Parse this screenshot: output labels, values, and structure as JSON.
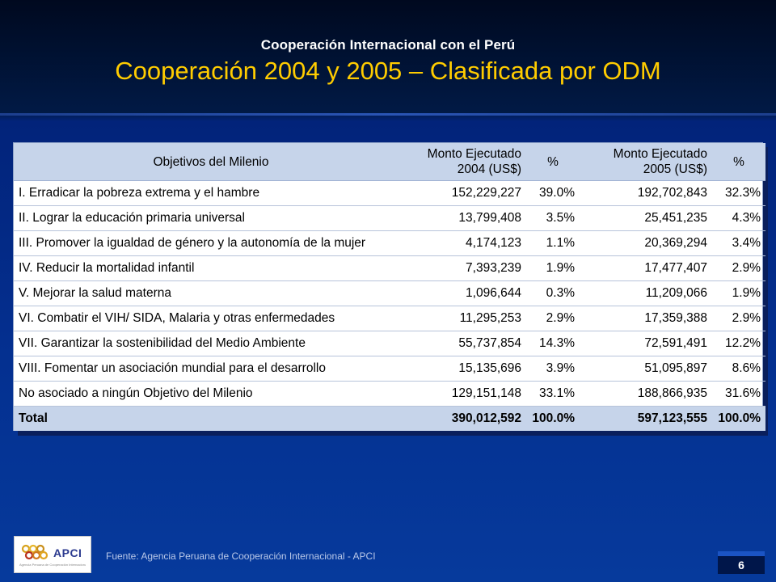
{
  "header": {
    "subtitle": "Cooperación Internacional con el Perú",
    "title": "Cooperación 2004 y 2005 – Clasificada por ODM"
  },
  "table": {
    "headers": {
      "objective": "Objetivos del Milenio",
      "amount_2004_line1": "Monto Ejecutado",
      "amount_2004_line2": "2004 (US$)",
      "pct_2004": "%",
      "amount_2005_line1": "Monto Ejecutado",
      "amount_2005_line2": "2005 (US$)",
      "pct_2005": "%"
    },
    "rows": [
      {
        "objective": "I. Erradicar la pobreza extrema y el hambre",
        "amount_2004": "152,229,227",
        "pct_2004": "39.0%",
        "amount_2005": "192,702,843",
        "pct_2005": "32.3%"
      },
      {
        "objective": "II. Lograr la educación primaria universal",
        "amount_2004": "13,799,408",
        "pct_2004": "3.5%",
        "amount_2005": "25,451,235",
        "pct_2005": "4.3%"
      },
      {
        "objective": "III. Promover la igualdad de género y la autonomía de la mujer",
        "amount_2004": "4,174,123",
        "pct_2004": "1.1%",
        "amount_2005": "20,369,294",
        "pct_2005": "3.4%"
      },
      {
        "objective": "IV. Reducir la mortalidad infantil",
        "amount_2004": "7,393,239",
        "pct_2004": "1.9%",
        "amount_2005": "17,477,407",
        "pct_2005": "2.9%"
      },
      {
        "objective": "V. Mejorar la salud materna",
        "amount_2004": "1,096,644",
        "pct_2004": "0.3%",
        "amount_2005": "11,209,066",
        "pct_2005": "1.9%"
      },
      {
        "objective": "VI. Combatir el VIH/ SIDA, Malaria y otras enfermedades",
        "amount_2004": "11,295,253",
        "pct_2004": "2.9%",
        "amount_2005": "17,359,388",
        "pct_2005": "2.9%"
      },
      {
        "objective": "VII. Garantizar la sostenibilidad del Medio Ambiente",
        "amount_2004": "55,737,854",
        "pct_2004": "14.3%",
        "amount_2005": "72,591,491",
        "pct_2005": "12.2%"
      },
      {
        "objective": "VIII. Fomentar un asociación mundial para el desarrollo",
        "amount_2004": "15,135,696",
        "pct_2004": "3.9%",
        "amount_2005": "51,095,897",
        "pct_2005": "8.6%"
      },
      {
        "objective": "No asociado a ningún Objetivo del Milenio",
        "amount_2004": "129,151,148",
        "pct_2004": "33.1%",
        "amount_2005": "188,866,935",
        "pct_2005": "31.6%"
      }
    ],
    "total": {
      "label": "Total",
      "amount_2004": "390,012,592",
      "pct_2004": "100.0%",
      "amount_2005": "597,123,555",
      "pct_2005": "100.0%"
    }
  },
  "footer": {
    "logo_text": "APCI",
    "logo_caption": "Agencia Peruana de Cooperación Internacional",
    "source": "Fuente: Agencia Peruana de Cooperación Internacional - APCI",
    "page_number": "6"
  },
  "colors": {
    "title": "#ffcc00",
    "header_row": "#c6d4ea",
    "background": "#042f8f"
  }
}
